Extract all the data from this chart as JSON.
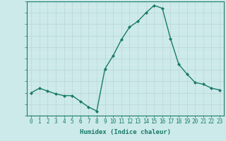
{
  "x": [
    0,
    1,
    2,
    3,
    4,
    5,
    6,
    7,
    8,
    9,
    10,
    11,
    12,
    13,
    14,
    15,
    16,
    17,
    18,
    19,
    20,
    21,
    22,
    23
  ],
  "y": [
    6.0,
    6.8,
    6.3,
    5.8,
    5.5,
    5.5,
    4.5,
    3.5,
    2.8,
    10.2,
    12.5,
    15.3,
    17.5,
    18.5,
    20.0,
    21.3,
    20.8,
    15.5,
    11.0,
    9.3,
    7.8,
    7.5,
    6.8,
    6.5
  ],
  "line_color": "#1a7a6a",
  "marker": "D",
  "marker_size": 2,
  "bg_color": "#cceaea",
  "xlabel": "Humidex (Indice chaleur)",
  "xlim": [
    -0.5,
    23.5
  ],
  "ylim": [
    2,
    22
  ],
  "yticks": [
    3,
    5,
    7,
    9,
    11,
    13,
    15,
    17,
    19,
    21
  ],
  "xticks": [
    0,
    1,
    2,
    3,
    4,
    5,
    6,
    7,
    8,
    9,
    10,
    11,
    12,
    13,
    14,
    15,
    16,
    17,
    18,
    19,
    20,
    21,
    22,
    23
  ],
  "xlabel_fontsize": 6.5,
  "tick_fontsize": 5.5,
  "line_width": 1.0,
  "major_grid_color": "#c0d8d8",
  "minor_grid_color": "#ddeaea"
}
